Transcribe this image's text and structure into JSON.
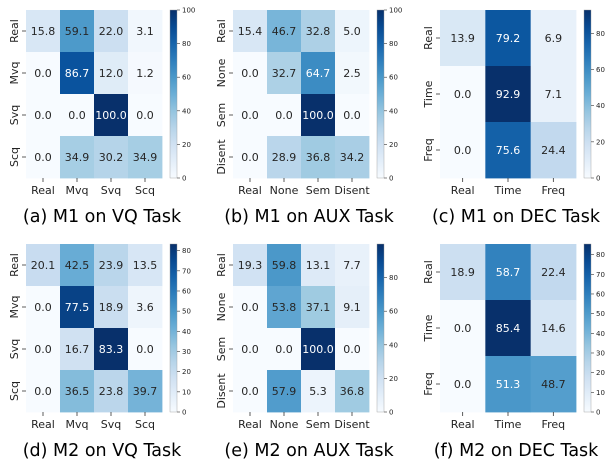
{
  "chart_data": [
    {
      "type": "heatmap",
      "caption": "(a) M1 on VQ Task",
      "rows": [
        "Real",
        "Mvq",
        "Svq",
        "Scq"
      ],
      "cols": [
        "Real",
        "Mvq",
        "Svq",
        "Scq"
      ],
      "values": [
        [
          15.8,
          59.1,
          22.0,
          3.1
        ],
        [
          0.0,
          86.7,
          12.0,
          1.2
        ],
        [
          0.0,
          0.0,
          100.0,
          0.0
        ],
        [
          0.0,
          34.9,
          30.2,
          34.9
        ]
      ],
      "colorbar": {
        "vmin": 0,
        "vmax": 100,
        "ticks": [
          0,
          20,
          40,
          60,
          80,
          100
        ]
      }
    },
    {
      "type": "heatmap",
      "caption": "(b) M1 on AUX Task",
      "rows": [
        "Real",
        "None",
        "Sem",
        "Disent"
      ],
      "cols": [
        "Real",
        "None",
        "Sem",
        "Disent"
      ],
      "values": [
        [
          15.4,
          46.7,
          32.8,
          5.0
        ],
        [
          0.0,
          32.7,
          64.7,
          2.5
        ],
        [
          0.0,
          0.0,
          100.0,
          0.0
        ],
        [
          0.0,
          28.9,
          36.8,
          34.2
        ]
      ],
      "colorbar": {
        "vmin": 0,
        "vmax": 100,
        "ticks": [
          0,
          20,
          40,
          60,
          80,
          100
        ]
      }
    },
    {
      "type": "heatmap",
      "caption": "(c) M1 on DEC Task",
      "rows": [
        "Real",
        "Time",
        "Freq"
      ],
      "cols": [
        "Real",
        "Time",
        "Freq"
      ],
      "values": [
        [
          13.9,
          79.2,
          6.9
        ],
        [
          0.0,
          92.9,
          7.1
        ],
        [
          0.0,
          75.6,
          24.4
        ]
      ],
      "colorbar": {
        "vmin": 0,
        "vmax": 92.9,
        "ticks": [
          0,
          20,
          40,
          60,
          80
        ]
      }
    },
    {
      "type": "heatmap",
      "caption": "(d) M2 on VQ Task",
      "rows": [
        "Real",
        "Mvq",
        "Svq",
        "Scq"
      ],
      "cols": [
        "Real",
        "Mvq",
        "Svq",
        "Scq"
      ],
      "values": [
        [
          20.1,
          42.5,
          23.9,
          13.5
        ],
        [
          0.0,
          77.5,
          18.9,
          3.6
        ],
        [
          0.0,
          16.7,
          83.3,
          0.0
        ],
        [
          0.0,
          36.5,
          23.8,
          39.7
        ]
      ],
      "colorbar": {
        "vmin": 0,
        "vmax": 83.3,
        "ticks": [
          0,
          10,
          20,
          30,
          40,
          50,
          60,
          70,
          80
        ]
      }
    },
    {
      "type": "heatmap",
      "caption": "(e) M2 on AUX Task",
      "rows": [
        "Real",
        "None",
        "Sem",
        "Disent"
      ],
      "cols": [
        "Real",
        "None",
        "Sem",
        "Disent"
      ],
      "values": [
        [
          19.3,
          59.8,
          13.1,
          7.7
        ],
        [
          0.0,
          53.8,
          37.1,
          9.1
        ],
        [
          0.0,
          0.0,
          100.0,
          0.0
        ],
        [
          0.0,
          57.9,
          5.3,
          36.8
        ]
      ],
      "colorbar": {
        "vmin": 0,
        "vmax": 100,
        "ticks": [
          0,
          20,
          40,
          60,
          80
        ]
      }
    },
    {
      "type": "heatmap",
      "caption": "(f) M2 on DEC Task",
      "rows": [
        "Real",
        "Time",
        "Freq"
      ],
      "cols": [
        "Real",
        "Time",
        "Freq"
      ],
      "values": [
        [
          18.9,
          58.7,
          22.4
        ],
        [
          0.0,
          85.4,
          14.6
        ],
        [
          0.0,
          51.3,
          48.7
        ]
      ],
      "colorbar": {
        "vmin": 0,
        "vmax": 85.4,
        "ticks": [
          0,
          10,
          20,
          30,
          40,
          50,
          60,
          70,
          80
        ]
      }
    }
  ]
}
